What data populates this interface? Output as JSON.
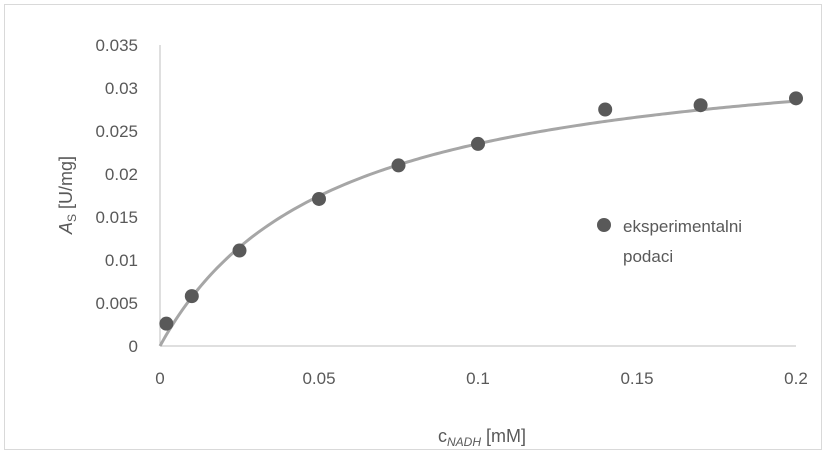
{
  "chart_data": {
    "type": "scatter",
    "title": "",
    "xlabel": {
      "main": "c",
      "subscript": "NADH",
      "unit": " [mM]"
    },
    "ylabel": {
      "main": "A",
      "subscript": "S",
      "unit": " [U/mg]"
    },
    "xlim": [
      0,
      0.2
    ],
    "ylim": [
      0,
      0.035
    ],
    "x_ticks": [
      "0",
      "0.05",
      "0.1",
      "0.15",
      "0.2"
    ],
    "y_ticks": [
      "0",
      "0.005",
      "0.01",
      "0.015",
      "0.02",
      "0.025",
      "0.03",
      "0.035"
    ],
    "grid": false,
    "legend_position": "right",
    "series": [
      {
        "name": "eksperimentalni podaci",
        "color": "#595959",
        "x": [
          0.002,
          0.01,
          0.025,
          0.05,
          0.075,
          0.1,
          0.14,
          0.17,
          0.2
        ],
        "y": [
          0.0026,
          0.0058,
          0.0111,
          0.0171,
          0.021,
          0.0235,
          0.0275,
          0.028,
          0.0288
        ]
      }
    ],
    "fit_curve": {
      "model": "michaelis-menten",
      "vmax": 0.0361,
      "km": 0.0535,
      "color": "#a6a6a6"
    }
  },
  "legend": {
    "line1": "eksperimentalni",
    "line2": "podaci"
  }
}
